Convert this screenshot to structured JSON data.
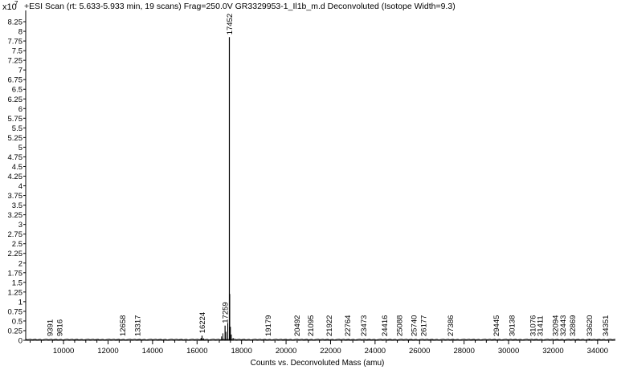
{
  "chart_data": {
    "type": "line",
    "title": "+ESI Scan (rt: 5.633-5.933 min, 19 scans) Frag=250.0V GR3329953-1_Il1b_m.d  Deconvoluted (Isotope Width=9.3)",
    "y_multiplier": "x10",
    "y_multiplier_exp": "7",
    "xlabel": "Counts vs. Deconvoluted Mass (amu)",
    "ylabel": "",
    "xlim": [
      8300,
      34800
    ],
    "ylim": [
      0,
      8.5
    ],
    "x_ticks": [
      10000,
      12000,
      14000,
      16000,
      18000,
      20000,
      22000,
      24000,
      26000,
      28000,
      30000,
      32000,
      34000
    ],
    "y_ticks": [
      0,
      0.25,
      0.5,
      0.75,
      1,
      1.25,
      1.5,
      1.75,
      2,
      2.25,
      2.5,
      2.75,
      3,
      3.25,
      3.5,
      3.75,
      4,
      4.25,
      4.5,
      4.75,
      5,
      5.25,
      5.5,
      5.75,
      6,
      6.25,
      6.5,
      6.75,
      7,
      7.25,
      7.5,
      7.75,
      8,
      8.25
    ],
    "y_tick_labels": [
      "0",
      "0.25",
      "0.5",
      "0.75",
      "1",
      "1.25",
      "1.5",
      "1.75",
      "2",
      "2.25",
      "2.5",
      "2.75",
      "3",
      "3.25",
      "3.5",
      "3.75",
      "4",
      "4.25",
      "4.5",
      "4.75",
      "5",
      "5.25",
      "5.5",
      "5.75",
      "6",
      "6.25",
      "6.5",
      "6.75",
      "7",
      "7.25",
      "7.5",
      "7.75",
      "8",
      "8.25"
    ],
    "peaks": [
      {
        "mass": 9391,
        "label": "9391",
        "intensity": 0.01
      },
      {
        "mass": 9816,
        "label": "9816",
        "intensity": 0.01
      },
      {
        "mass": 12658,
        "label": "12658",
        "intensity": 0.01
      },
      {
        "mass": 13317,
        "label": "13317",
        "intensity": 0.01
      },
      {
        "mass": 16224,
        "label": "16224",
        "intensity": 0.12
      },
      {
        "mass": 17259,
        "label": "17259",
        "intensity": 0.38
      },
      {
        "mass": 17452,
        "label": "17452",
        "intensity": 7.85
      },
      {
        "mass": 19179,
        "label": "19179",
        "intensity": 0.01
      },
      {
        "mass": 20492,
        "label": "20492",
        "intensity": 0.01
      },
      {
        "mass": 21095,
        "label": "21095",
        "intensity": 0.01
      },
      {
        "mass": 21922,
        "label": "21922",
        "intensity": 0.01
      },
      {
        "mass": 22764,
        "label": "22764",
        "intensity": 0.01
      },
      {
        "mass": 23473,
        "label": "23473",
        "intensity": 0.01
      },
      {
        "mass": 24416,
        "label": "24416",
        "intensity": 0.01
      },
      {
        "mass": 25088,
        "label": "25088",
        "intensity": 0.01
      },
      {
        "mass": 25740,
        "label": "25740",
        "intensity": 0.01
      },
      {
        "mass": 26177,
        "label": "26177",
        "intensity": 0.01
      },
      {
        "mass": 27386,
        "label": "27386",
        "intensity": 0.01
      },
      {
        "mass": 29445,
        "label": "29445",
        "intensity": 0.01
      },
      {
        "mass": 30138,
        "label": "30138",
        "intensity": 0.01
      },
      {
        "mass": 31076,
        "label": "31076",
        "intensity": 0.01
      },
      {
        "mass": 31411,
        "label": "31411",
        "intensity": 0.01
      },
      {
        "mass": 32094,
        "label": "32094",
        "intensity": 0.01
      },
      {
        "mass": 32443,
        "label": "32443",
        "intensity": 0.01
      },
      {
        "mass": 32869,
        "label": "32869",
        "intensity": 0.01
      },
      {
        "mass": 33620,
        "label": "33620",
        "intensity": 0.03
      },
      {
        "mass": 34351,
        "label": "34351",
        "intensity": 0.01
      }
    ],
    "minor_peaks": [
      {
        "mass": 16180,
        "intensity": 0.06
      },
      {
        "mass": 16300,
        "intensity": 0.05
      },
      {
        "mass": 17100,
        "intensity": 0.1
      },
      {
        "mass": 17160,
        "intensity": 0.18
      },
      {
        "mass": 17300,
        "intensity": 0.22
      },
      {
        "mass": 17380,
        "intensity": 0.45
      },
      {
        "mass": 17470,
        "intensity": 1.2
      },
      {
        "mass": 17500,
        "intensity": 0.35
      },
      {
        "mass": 17540,
        "intensity": 0.15
      },
      {
        "mass": 17620,
        "intensity": 0.06
      }
    ],
    "line_color": "#000000"
  }
}
